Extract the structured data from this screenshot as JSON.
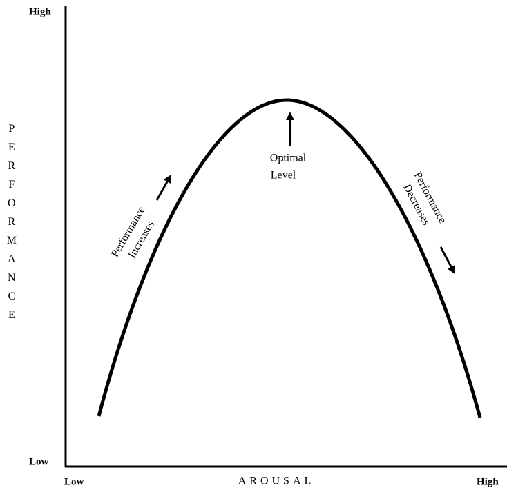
{
  "y_axis": {
    "label": "PERFORMANCE",
    "high": "High",
    "low": "Low"
  },
  "x_axis": {
    "label": "AROUSAL",
    "low": "Low",
    "high": "High"
  },
  "annotations": {
    "optimal": [
      "Optimal",
      "Level"
    ],
    "increases": [
      "Performance",
      "Increases"
    ],
    "decreases": [
      "Performance",
      "Decreases"
    ]
  }
}
